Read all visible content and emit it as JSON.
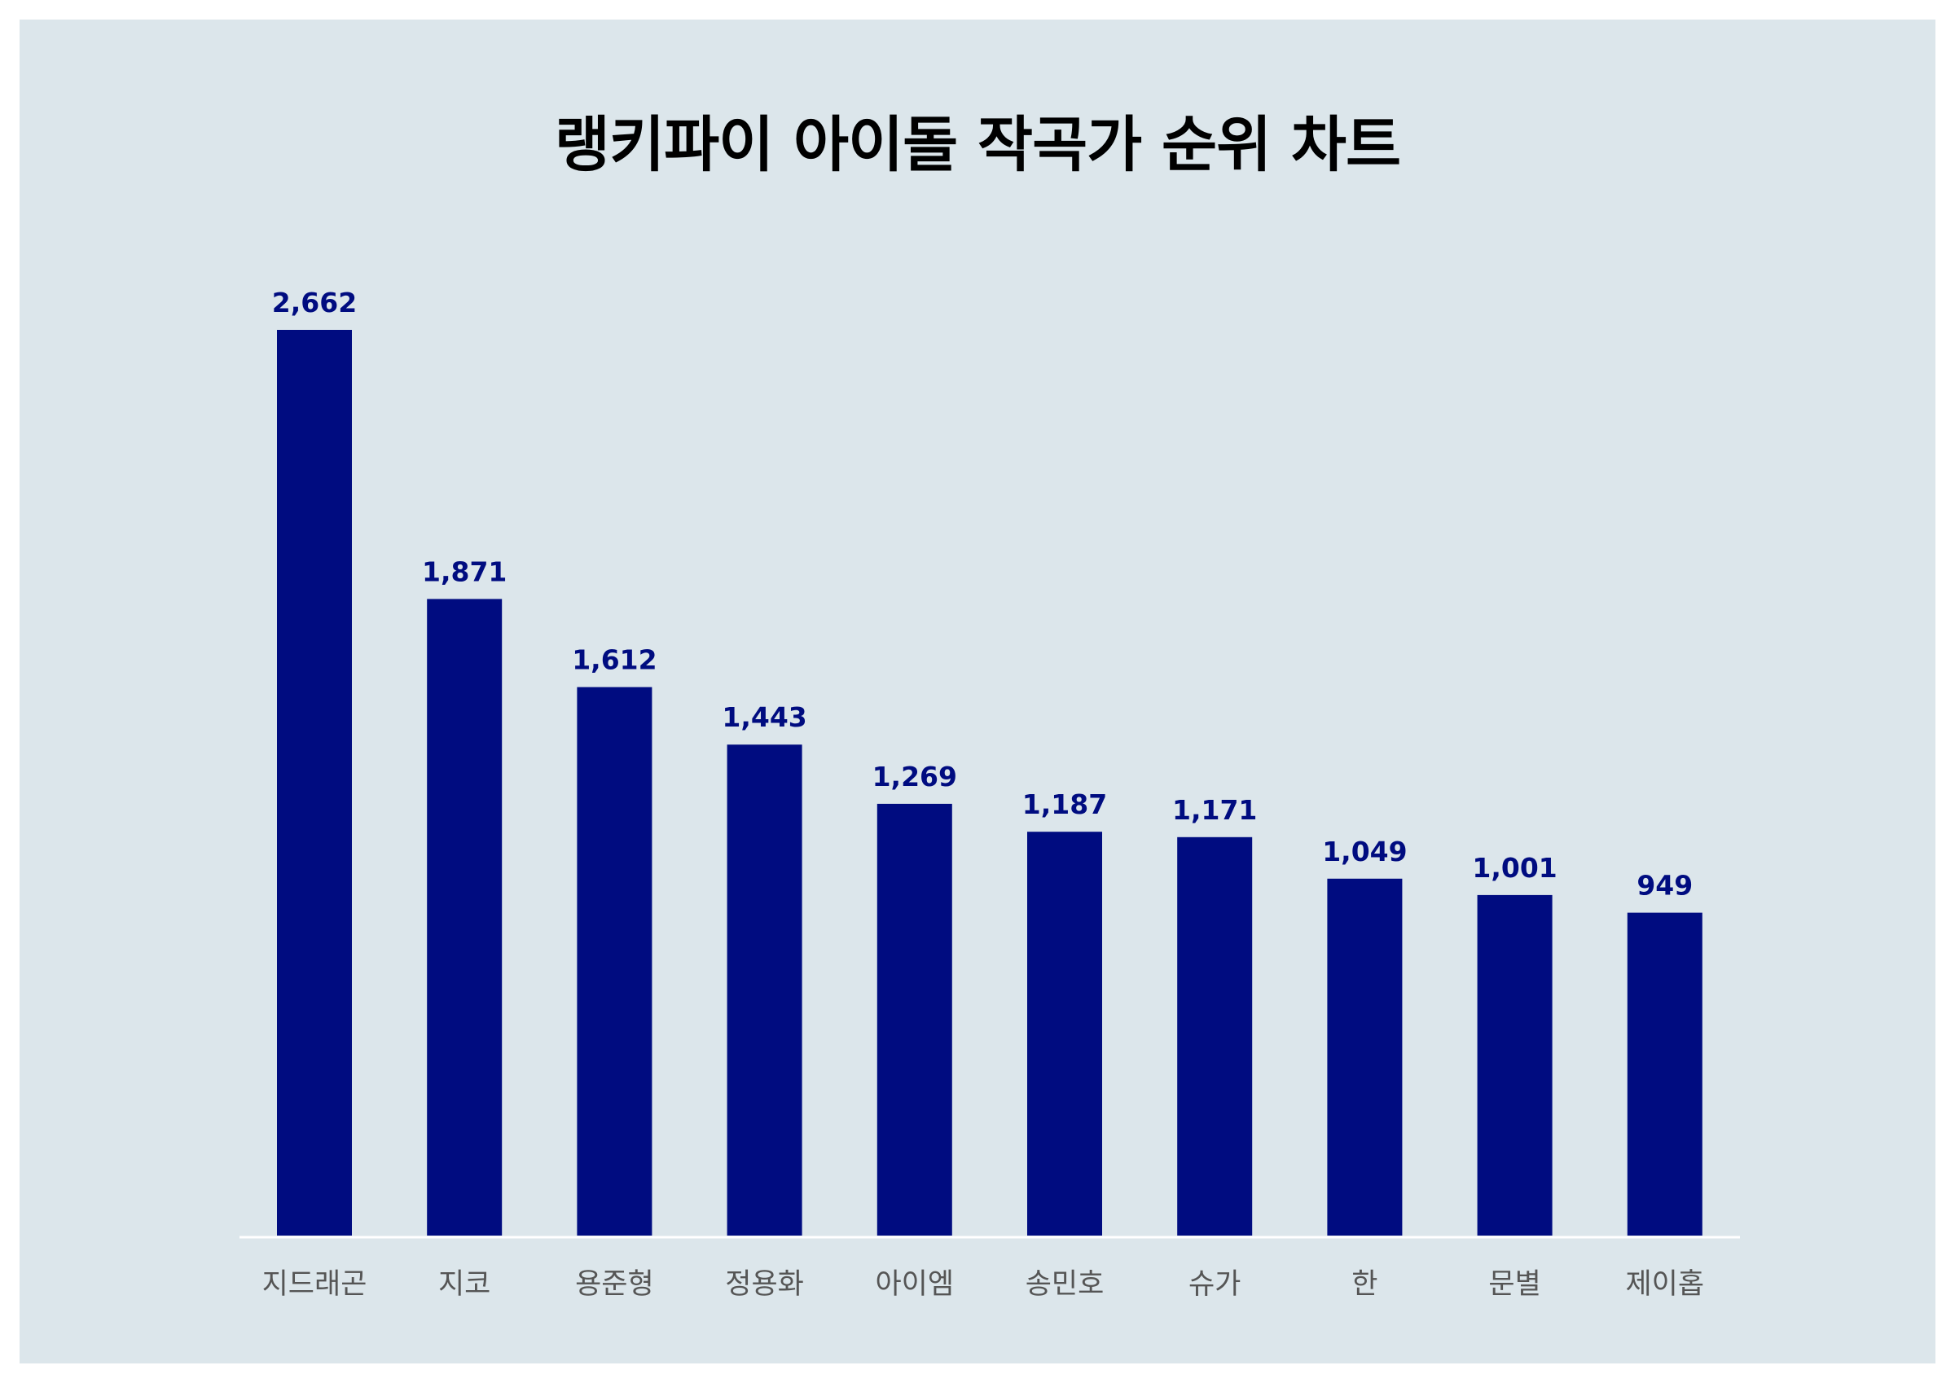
{
  "chart_data": {
    "type": "bar",
    "title": "랭키파이 아이돌 작곡가 순위 차트",
    "categories": [
      "지드래곤",
      "지코",
      "용준형",
      "정용화",
      "아이엠",
      "송민호",
      "슈가",
      "한",
      "문별",
      "제이홉"
    ],
    "values": [
      2662,
      1871,
      1612,
      1443,
      1269,
      1187,
      1171,
      1049,
      1001,
      949
    ],
    "value_labels": [
      "2,662",
      "1,871",
      "1,612",
      "1,443",
      "1,269",
      "1,187",
      "1,171",
      "1,049",
      "1,001",
      "949"
    ],
    "ylim": [
      0,
      2662
    ],
    "grid": false,
    "legend": "none",
    "colors": {
      "bar": "#000c80",
      "value_label": "#000c80",
      "category_label": "#555555",
      "background": "#dce6eb",
      "baseline": "#ffffff"
    }
  }
}
